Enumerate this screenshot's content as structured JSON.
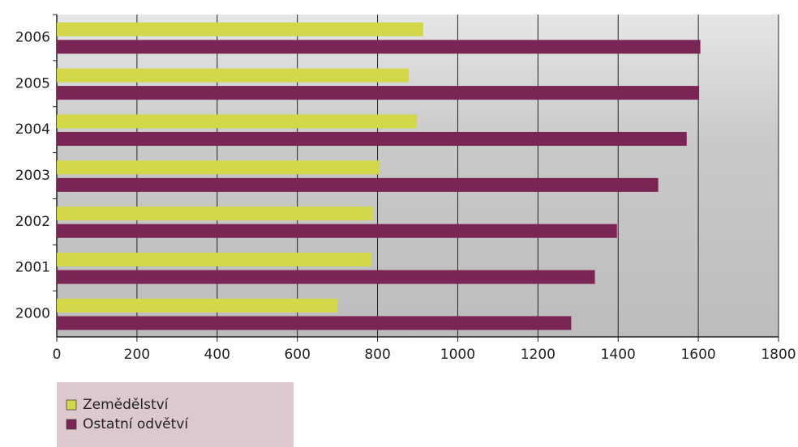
{
  "chart_data": {
    "type": "barh",
    "categories": [
      "2006",
      "2005",
      "2004",
      "2003",
      "2002",
      "2001",
      "2000"
    ],
    "series": [
      {
        "name": "Zemědělství",
        "color": "#d3d84a",
        "values": [
          914,
          878,
          898,
          805,
          789,
          783,
          700
        ]
      },
      {
        "name": "Ostatní odvětví",
        "color": "#7b2555",
        "values": [
          1605,
          1602,
          1571,
          1500,
          1397,
          1342,
          1283
        ]
      }
    ],
    "xlim": [
      0,
      1800
    ],
    "xticks": [
      0,
      200,
      400,
      600,
      800,
      1000,
      1200,
      1400,
      1600,
      1800
    ],
    "grid": true,
    "legend": "bottom-left"
  }
}
